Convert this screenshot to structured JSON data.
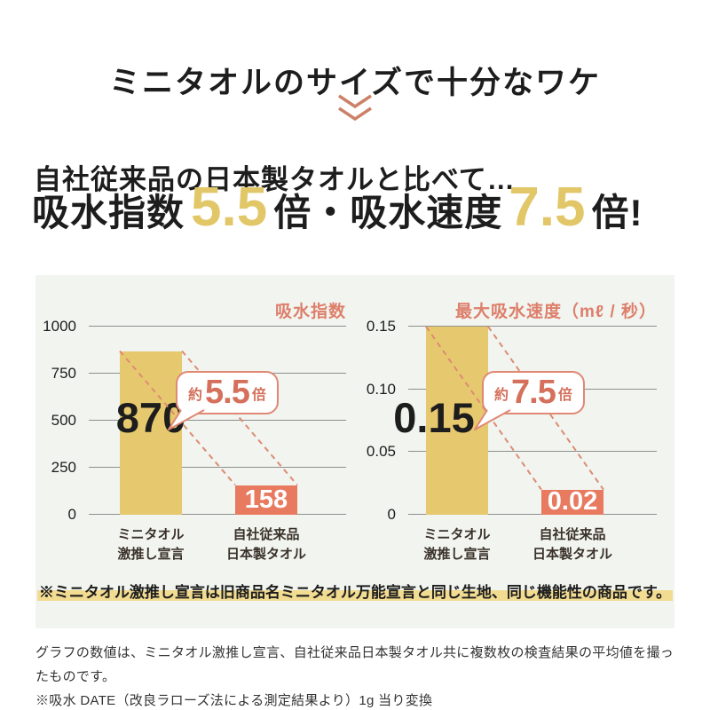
{
  "page": {
    "title": "ミニタオルのサイズで十分なワケ",
    "subtitle": "自社従来品の日本製タオルと比べて…",
    "stat_line": {
      "part1": "吸水指数",
      "num1": "5.5",
      "part2": "倍・吸水速度",
      "num2": "7.5",
      "part3": "倍!"
    },
    "note": "※ミニタオル激推し宣言は旧商品名ミニタオル万能宣言と同じ生地、同じ機能性の商品です。",
    "footer_lines": [
      "グラフの数値は、ミニタオル激推し宣言、自社従来品日本製タオル共に複数枚の検査結果の平均値を撮ったものです。",
      "※吸水 DATE（改良ラローズ法による測定結果より）1g 当り変換"
    ]
  },
  "icons": {
    "chevron_double_down": "chevron-double-down-icon"
  },
  "colors": {
    "accent_salmon": "#dd7f6b",
    "dash_line": "#de8b72",
    "bubble_border": "#e08874",
    "bubble_text": "#d4705b",
    "bar_yellow": "#e6c96e",
    "bar_salmon": "#e87a60",
    "gold_number": "#e2c768",
    "panel_bg": "#f1f4ef",
    "highlight_yellow": "#f2dc92",
    "chevron": "#cc8168"
  },
  "chart_data": [
    {
      "type": "bar",
      "title": "吸水指数",
      "categories": [
        [
          "ミニタオル",
          "激推し宣言"
        ],
        [
          "自社従来品",
          "日本製タオル"
        ]
      ],
      "values": [
        870,
        158
      ],
      "value_labels": [
        "870",
        "158"
      ],
      "ylim": [
        0,
        1000
      ],
      "yticks": [
        0,
        250,
        500,
        750,
        1000
      ],
      "ytick_labels": [
        "0",
        "250",
        "500",
        "750",
        "1000"
      ],
      "bar_colors": [
        "#e6c96e",
        "#e87a60"
      ],
      "grid": true,
      "legend": "none",
      "annotation": {
        "prefix": "約",
        "value": "5.5",
        "suffix": "倍"
      }
    },
    {
      "type": "bar",
      "title": "最大吸水速度（mℓ / 秒）",
      "categories": [
        [
          "ミニタオル",
          "激推し宣言"
        ],
        [
          "自社従来品",
          "日本製タオル"
        ]
      ],
      "values": [
        0.15,
        0.02
      ],
      "value_labels": [
        "0.15",
        "0.02"
      ],
      "ylim": [
        0,
        0.15
      ],
      "yticks": [
        0,
        0.05,
        0.1,
        0.15
      ],
      "ytick_labels": [
        "0",
        "0.05",
        "0.10",
        "0.15"
      ],
      "bar_colors": [
        "#e6c96e",
        "#e87a60"
      ],
      "grid": true,
      "legend": "none",
      "annotation": {
        "prefix": "約",
        "value": "7.5",
        "suffix": "倍"
      }
    }
  ]
}
